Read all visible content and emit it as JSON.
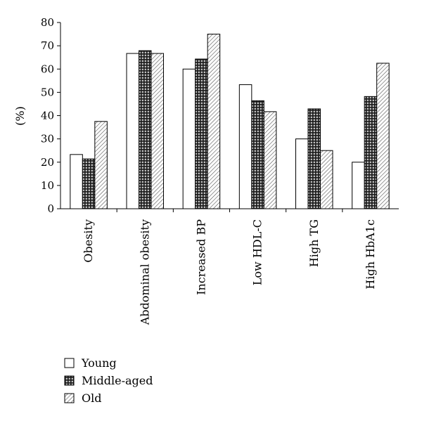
{
  "chart_data": {
    "type": "bar",
    "categories": [
      "Obesity",
      "Abdominal obesity",
      "Increased BP",
      "Low HDL-C",
      "High TG",
      "High HbA1c"
    ],
    "series": [
      {
        "name": "Young",
        "values": [
          23.3,
          66.7,
          60.0,
          53.3,
          30.0,
          20.0
        ],
        "fill": "white"
      },
      {
        "name": "Middle-aged",
        "values": [
          21.4,
          67.9,
          64.3,
          46.4,
          42.9,
          48.2
        ],
        "fill": "grid"
      },
      {
        "name": "Old",
        "values": [
          37.5,
          66.7,
          75.0,
          41.7,
          25.0,
          62.5
        ],
        "fill": "hatch"
      }
    ],
    "ylabel": "(%)",
    "xlabel": "",
    "ylim": [
      0,
      80
    ],
    "yticks": [
      0,
      10,
      20,
      30,
      40,
      50,
      60,
      70,
      80
    ],
    "grid": false,
    "legend_position": "bottom-left",
    "colors": {
      "border": "#000000",
      "bar_white": "#ffffff",
      "grid_dark": "#1a1a1a",
      "grid_light": "#bdbdbd",
      "hatch_line": "#555555"
    }
  }
}
